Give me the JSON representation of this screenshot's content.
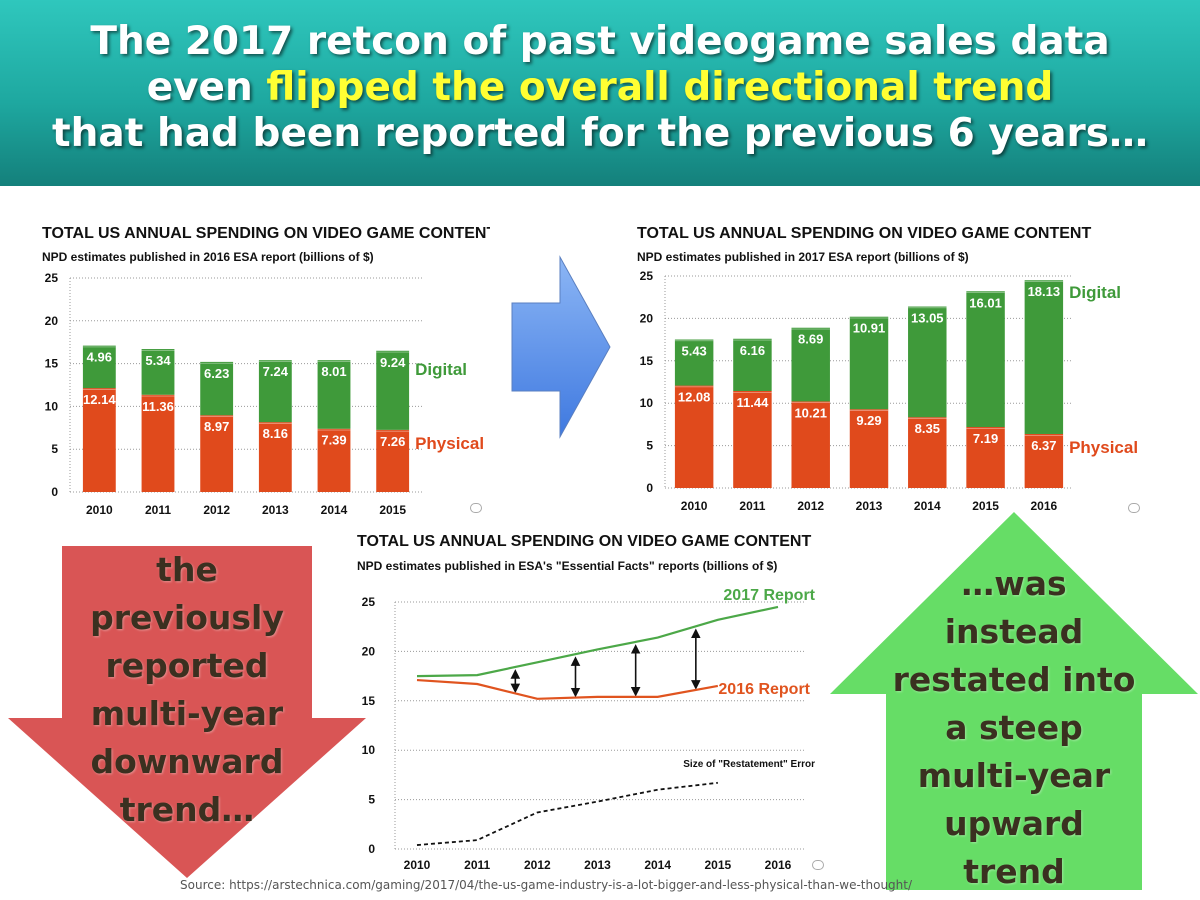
{
  "header": {
    "line1": "The 2017 retcon of past videogame sales data",
    "line2_pre": "even ",
    "line2_highlight": "flipped the overall directional trend",
    "line3": "that had been reported for the previous 6 years…"
  },
  "arrows": {
    "down_text": "the previously reported multi-year downward trend…",
    "up_text": "…was instead restated into a steep multi-year upward trend"
  },
  "source": "Source: https://arstechnica.com/gaming/2017/04/the-us-game-industry-is-a-lot-bigger-and-less-physical-than-we-thought/",
  "colors": {
    "physical": "#e04a1c",
    "digital": "#3f9a3a",
    "line_2017": "#4ca848",
    "line_2016": "#e0541f",
    "down_arrow": "#d95555",
    "up_arrow": "#66dd66",
    "blue_arrow": "#6a9ef0"
  },
  "chart_data": [
    {
      "type": "bar",
      "title": "TOTAL US ANNUAL SPENDING ON VIDEO GAME CONTENT",
      "subtitle": "NPD estimates published in 2016 ESA report (billions of $)",
      "categories": [
        "2010",
        "2011",
        "2012",
        "2013",
        "2014",
        "2015"
      ],
      "series": [
        {
          "name": "Physical",
          "values": [
            12.14,
            11.36,
            8.97,
            8.16,
            7.39,
            7.26
          ]
        },
        {
          "name": "Digital",
          "values": [
            4.96,
            5.34,
            6.23,
            7.24,
            8.01,
            9.24
          ]
        }
      ],
      "labels": [
        [
          "12.14",
          "11.36",
          "8.97",
          "8.16",
          "7.39",
          "7.26"
        ],
        [
          "4.96",
          "5.34",
          "6.23",
          "7.24",
          "8.01",
          "9.24"
        ]
      ],
      "yticks": [
        "0",
        "5",
        "10",
        "15",
        "20",
        "25"
      ],
      "ylim": [
        0,
        25
      ],
      "stacked": true,
      "grid": true,
      "legend_placement": "right"
    },
    {
      "type": "bar",
      "title": "TOTAL US ANNUAL SPENDING ON VIDEO GAME CONTENT",
      "subtitle": "NPD estimates published in 2017 ESA report (billions of $)",
      "categories": [
        "2010",
        "2011",
        "2012",
        "2013",
        "2014",
        "2015",
        "2016"
      ],
      "series": [
        {
          "name": "Physical",
          "values": [
            12.08,
            11.44,
            10.21,
            9.29,
            8.35,
            7.19,
            6.37
          ]
        },
        {
          "name": "Digital",
          "values": [
            5.43,
            6.16,
            8.69,
            10.91,
            13.05,
            16.01,
            18.13
          ]
        }
      ],
      "labels": [
        [
          "12.08",
          "11.44",
          "10.21",
          "9.29",
          "8.35",
          "7.19",
          "6.37"
        ],
        [
          "5.43",
          "6.16",
          "8.69",
          "10.91",
          "13.05",
          "16.01",
          "18.13"
        ]
      ],
      "yticks": [
        "0",
        "5",
        "10",
        "15",
        "20",
        "25"
      ],
      "ylim": [
        0,
        25
      ],
      "stacked": true,
      "grid": true,
      "legend_placement": "right"
    },
    {
      "type": "line",
      "title": "TOTAL US ANNUAL SPENDING ON VIDEO GAME CONTENT",
      "subtitle": "NPD estimates published in ESA's \"Essential Facts\" reports (billions of $)",
      "categories": [
        "2010",
        "2011",
        "2012",
        "2013",
        "2014",
        "2015",
        "2016"
      ],
      "series": [
        {
          "name": "2017 Report",
          "values": [
            17.5,
            17.6,
            18.9,
            20.2,
            21.4,
            23.2,
            24.5
          ]
        },
        {
          "name": "2016 Report",
          "values": [
            17.1,
            16.7,
            15.2,
            15.4,
            15.4,
            16.5,
            null
          ]
        },
        {
          "name": "Size of  \"Restatement\" Error",
          "values": [
            0.4,
            0.9,
            3.7,
            4.8,
            6.0,
            6.7,
            null
          ]
        }
      ],
      "yticks": [
        "0",
        "5",
        "10",
        "15",
        "20",
        "25"
      ],
      "ylim": [
        0,
        25
      ],
      "grid": true
    }
  ]
}
